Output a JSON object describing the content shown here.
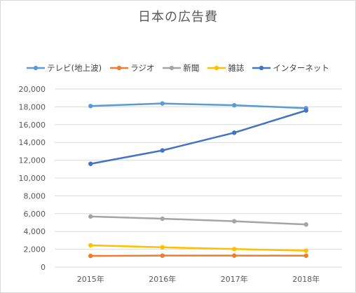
{
  "chart_data": {
    "type": "line",
    "title": "日本の広告費",
    "xlabel": "",
    "ylabel": "",
    "categories": [
      "2015年",
      "2016年",
      "2017年",
      "2018年"
    ],
    "ylim": [
      0,
      20000
    ],
    "yticks": [
      "0",
      "2,000",
      "4,000",
      "6,000",
      "8,000",
      "10,000",
      "12,000",
      "14,000",
      "16,000",
      "18,000",
      "20,000"
    ],
    "grid": true,
    "legend_position": "top",
    "series": [
      {
        "name": "テレビ(地上波)",
        "color": "#5b9bd5",
        "values": [
          18088,
          18374,
          18178,
          17848
        ]
      },
      {
        "name": "ラジオ",
        "color": "#ed7d31",
        "values": [
          1254,
          1285,
          1290,
          1278
        ]
      },
      {
        "name": "新聞",
        "color": "#a5a5a5",
        "values": [
          5679,
          5431,
          5147,
          4784
        ]
      },
      {
        "name": "雑誌",
        "color": "#ffc000",
        "values": [
          2443,
          2223,
          2023,
          1841
        ]
      },
      {
        "name": "インターネット",
        "color": "#4472c4",
        "values": [
          11594,
          13100,
          15094,
          17589
        ]
      }
    ]
  }
}
